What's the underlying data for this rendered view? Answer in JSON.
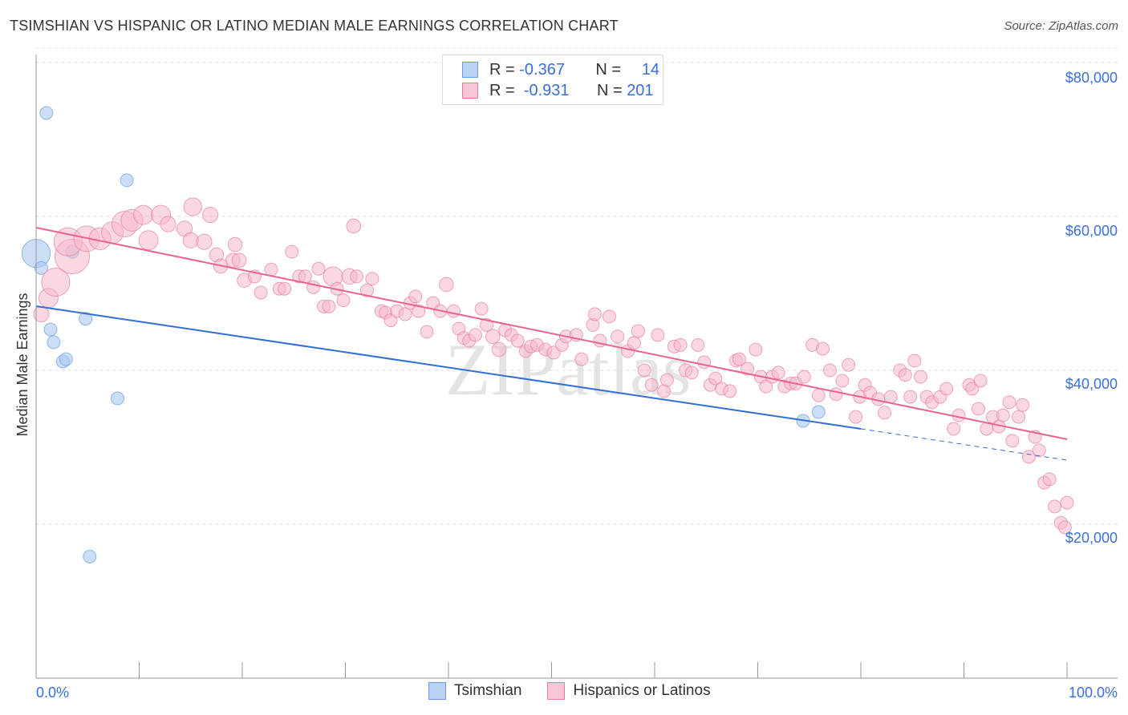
{
  "title": "TSIMSHIAN VS HISPANIC OR LATINO MEDIAN MALE EARNINGS CORRELATION CHART",
  "source": "Source: ZipAtlas.com",
  "watermark": "ZIPatlas",
  "legend": {
    "rows": [
      {
        "r_label": "R =",
        "r": "-0.367",
        "n_label": "N =",
        "n": "14"
      },
      {
        "r_label": "R =",
        "r": "-0.931",
        "n_label": "N =",
        "n": "201"
      }
    ]
  },
  "chart_data": {
    "type": "scatter",
    "title": "TSIMSHIAN VS HISPANIC OR LATINO MEDIAN MALE EARNINGS CORRELATION CHART",
    "xlabel": "",
    "ylabel": "Median Male Earnings",
    "xlim": [
      0,
      100
    ],
    "ylim": [
      0,
      85000
    ],
    "x_tick_labels": [
      "0.0%",
      "100.0%"
    ],
    "y_ticks": [
      20000,
      40000,
      60000,
      80000
    ],
    "y_tick_labels": [
      "$20,000",
      "$40,000",
      "$60,000",
      "$80,000"
    ],
    "grid": true,
    "legend_position": "bottom",
    "series": [
      {
        "name": "Tsimshian",
        "color": "#a9c8f0",
        "stroke": "#6a9be0",
        "line_color": "#2f6fd6",
        "trend": {
          "x0": 0,
          "y0": 48330,
          "x_solid_end": 80,
          "y_solid_end": 32400,
          "x1": 100,
          "y1": 28330
        },
        "points": [
          [
            1.0,
            73440,
            1
          ],
          [
            8.8,
            64700,
            1
          ],
          [
            0,
            55200,
            2.2
          ],
          [
            0.5,
            53300,
            1
          ],
          [
            3.5,
            55400,
            1
          ],
          [
            4.8,
            46700,
            1
          ],
          [
            1.4,
            45300,
            1
          ],
          [
            1.7,
            43650,
            1
          ],
          [
            2.6,
            41150,
            1
          ],
          [
            2.9,
            41450,
            1
          ],
          [
            7.9,
            36350,
            1
          ],
          [
            5.2,
            15800,
            1
          ],
          [
            74.4,
            33440,
            1
          ],
          [
            75.9,
            34580,
            1
          ]
        ]
      },
      {
        "name": "Hispanics or Latinos",
        "color": "#f6b8cb",
        "stroke": "#e87fa0",
        "line_color": "#e8648f",
        "trend": {
          "x0": 0,
          "y0": 58540,
          "x1": 100,
          "y1": 31040
        },
        "points": [
          [
            0.5,
            47300,
            1.2
          ],
          [
            1.2,
            49400,
            1.5
          ],
          [
            1.9,
            51460,
            2.2
          ],
          [
            3.5,
            54800,
            2.7
          ],
          [
            3.1,
            56700,
            2.2
          ],
          [
            4.9,
            57100,
            2
          ],
          [
            6.2,
            57100,
            1.7
          ],
          [
            7.4,
            57900,
            1.7
          ],
          [
            8.6,
            59000,
            2
          ],
          [
            9.3,
            59500,
            1.7
          ],
          [
            10.4,
            60200,
            1.5
          ],
          [
            10.9,
            56900,
            1.5
          ],
          [
            12.1,
            60200,
            1.5
          ],
          [
            12.8,
            59000,
            1.2
          ],
          [
            14.4,
            58400,
            1.2
          ],
          [
            15.2,
            61250,
            1.4
          ],
          [
            15.0,
            56900,
            1.2
          ],
          [
            16.3,
            56700,
            1.2
          ],
          [
            16.9,
            60200,
            1.2
          ],
          [
            17.5,
            55000,
            1.1
          ],
          [
            17.9,
            53550,
            1.1
          ],
          [
            19.1,
            54300,
            1.1
          ],
          [
            19.7,
            54300,
            1.1
          ],
          [
            19.3,
            56350,
            1.1
          ],
          [
            20.2,
            51700,
            1.1
          ],
          [
            21.2,
            52200,
            1
          ],
          [
            21.8,
            50100,
            1
          ],
          [
            22.8,
            53100,
            1
          ],
          [
            23.6,
            50600,
            1
          ],
          [
            24.1,
            50600,
            1
          ],
          [
            24.8,
            55400,
            1
          ],
          [
            25.5,
            52200,
            1
          ],
          [
            26.1,
            52200,
            1
          ],
          [
            26.9,
            50800,
            1
          ],
          [
            27.4,
            53200,
            1
          ],
          [
            27.9,
            48300,
            1
          ],
          [
            28.4,
            48300,
            1
          ],
          [
            28.8,
            52200,
            1.5
          ],
          [
            29.2,
            50600,
            1
          ],
          [
            29.8,
            49100,
            1
          ],
          [
            30.4,
            52200,
            1.2
          ],
          [
            30.8,
            58750,
            1.1
          ],
          [
            31.1,
            52200,
            1
          ],
          [
            32.1,
            50400,
            1
          ],
          [
            32.6,
            51900,
            1
          ],
          [
            33.5,
            47700,
            1
          ],
          [
            33.9,
            47500,
            1
          ],
          [
            34.4,
            46500,
            1
          ],
          [
            35.0,
            47700,
            1
          ],
          [
            35.8,
            47300,
            1
          ],
          [
            36.3,
            48750,
            1
          ],
          [
            36.8,
            49600,
            1
          ],
          [
            37.1,
            47700,
            1
          ],
          [
            37.9,
            45000,
            1
          ],
          [
            38.5,
            48750,
            1
          ],
          [
            39.2,
            47700,
            1
          ],
          [
            39.8,
            51150,
            1.1
          ],
          [
            40.5,
            47700,
            1
          ],
          [
            41.0,
            45400,
            1
          ],
          [
            41.5,
            44200,
            1
          ],
          [
            42.0,
            43850,
            1
          ],
          [
            42.6,
            44600,
            1
          ],
          [
            43.2,
            48000,
            1
          ],
          [
            43.7,
            45900,
            1
          ],
          [
            44.3,
            44400,
            1.1
          ],
          [
            44.9,
            42700,
            1.1
          ],
          [
            45.5,
            45200,
            1
          ],
          [
            46.1,
            44600,
            1
          ],
          [
            46.7,
            43850,
            1
          ],
          [
            47.5,
            42500,
            1
          ],
          [
            48.0,
            43100,
            1
          ],
          [
            48.6,
            43300,
            1
          ],
          [
            49.4,
            42700,
            1
          ],
          [
            50.2,
            42300,
            1
          ],
          [
            51.0,
            43300,
            1
          ],
          [
            51.4,
            44400,
            1
          ],
          [
            52.4,
            44600,
            1
          ],
          [
            52.9,
            41450,
            1
          ],
          [
            54.0,
            45900,
            1
          ],
          [
            54.2,
            47300,
            1
          ],
          [
            54.7,
            43850,
            1
          ],
          [
            55.6,
            47000,
            1
          ],
          [
            56.4,
            44400,
            1
          ],
          [
            57.4,
            42500,
            1
          ],
          [
            58.0,
            43550,
            1
          ],
          [
            58.4,
            45100,
            1
          ],
          [
            59.0,
            40000,
            1
          ],
          [
            59.7,
            38100,
            1
          ],
          [
            60.3,
            44600,
            1
          ],
          [
            60.9,
            37300,
            1
          ],
          [
            61.2,
            38750,
            1
          ],
          [
            61.9,
            43100,
            1
          ],
          [
            62.5,
            43300,
            1
          ],
          [
            63.0,
            40000,
            1
          ],
          [
            63.6,
            39700,
            1
          ],
          [
            64.2,
            43300,
            1
          ],
          [
            64.8,
            41050,
            1
          ],
          [
            65.4,
            38100,
            1
          ],
          [
            65.9,
            38950,
            1
          ],
          [
            66.5,
            37600,
            1
          ],
          [
            67.3,
            37300,
            1
          ],
          [
            67.9,
            41250,
            1
          ],
          [
            68.2,
            41450,
            1
          ],
          [
            69.0,
            40200,
            1
          ],
          [
            69.8,
            42700,
            1
          ],
          [
            70.3,
            39150,
            1
          ],
          [
            70.8,
            37900,
            1
          ],
          [
            71.4,
            39150,
            1
          ],
          [
            72.0,
            39700,
            1
          ],
          [
            72.6,
            37900,
            1
          ],
          [
            73.2,
            38300,
            1
          ],
          [
            73.7,
            38300,
            1
          ],
          [
            74.5,
            39150,
            1
          ],
          [
            75.3,
            43300,
            1
          ],
          [
            75.9,
            36750,
            1
          ],
          [
            76.3,
            42800,
            1
          ],
          [
            77.0,
            40000,
            1
          ],
          [
            77.6,
            36900,
            1
          ],
          [
            78.2,
            38650,
            1
          ],
          [
            78.8,
            40700,
            1
          ],
          [
            79.5,
            33950,
            1
          ],
          [
            79.9,
            36550,
            1
          ],
          [
            80.4,
            38100,
            1
          ],
          [
            80.9,
            37100,
            1
          ],
          [
            81.7,
            36250,
            1
          ],
          [
            82.3,
            34500,
            1
          ],
          [
            82.9,
            36550,
            1
          ],
          [
            83.8,
            40000,
            1
          ],
          [
            84.3,
            39400,
            1
          ],
          [
            84.8,
            36550,
            1
          ],
          [
            85.2,
            41250,
            1
          ],
          [
            85.8,
            39150,
            1
          ],
          [
            86.4,
            36550,
            1
          ],
          [
            86.9,
            35850,
            1
          ],
          [
            87.7,
            36550,
            1
          ],
          [
            88.3,
            37600,
            1
          ],
          [
            89.0,
            32400,
            1
          ],
          [
            89.5,
            34150,
            1
          ],
          [
            90.5,
            38100,
            1
          ],
          [
            90.8,
            37600,
            1
          ],
          [
            91.4,
            35000,
            1
          ],
          [
            91.6,
            38650,
            1
          ],
          [
            92.2,
            32400,
            1
          ],
          [
            92.8,
            33950,
            1
          ],
          [
            93.4,
            32700,
            1
          ],
          [
            93.8,
            34150,
            1
          ],
          [
            94.4,
            35850,
            1
          ],
          [
            94.7,
            30850,
            1
          ],
          [
            95.3,
            33950,
            1
          ],
          [
            95.7,
            35500,
            1
          ],
          [
            96.3,
            28750,
            1
          ],
          [
            96.9,
            31350,
            1
          ],
          [
            97.3,
            29600,
            1
          ],
          [
            97.8,
            25400,
            1
          ],
          [
            98.3,
            25850,
            1
          ],
          [
            98.8,
            22300,
            1
          ],
          [
            99.4,
            20200,
            1
          ],
          [
            99.8,
            19600,
            1
          ],
          [
            100,
            22800,
            1
          ]
        ]
      }
    ]
  }
}
